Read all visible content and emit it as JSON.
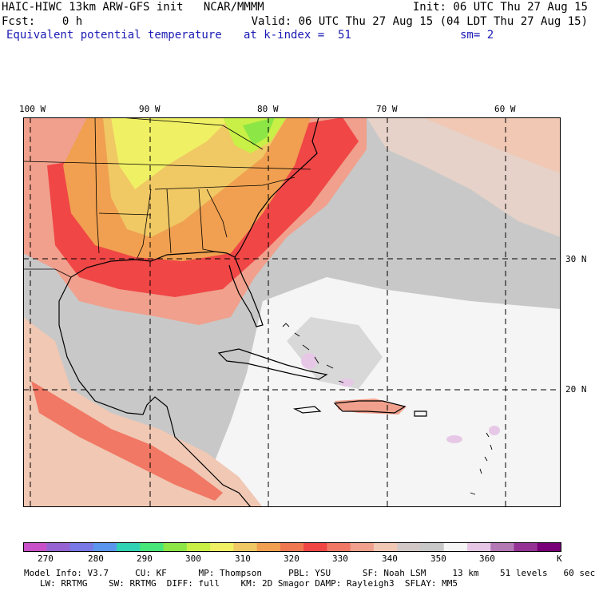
{
  "header": {
    "left_line1": "HAIC-HIWC 13km ARW-GFS init   NCAR/MMMM",
    "left_line2": "Fcst:    0 h",
    "field_name": "Equivalent potential temperature",
    "init": "Init: 06 UTC Thu 27 Aug 15",
    "valid": "Valid: 06 UTC Thu 27 Aug 15 (04 LDT Thu 27 Aug 15)",
    "level": "at k-index =  51",
    "smoothing": "sm= 2"
  },
  "map": {
    "lon_labels": [
      "100 W",
      "90 W",
      "80 W",
      "70 W",
      "60 W"
    ],
    "lat_labels": [
      "30 N",
      "20 N"
    ]
  },
  "colorbar": {
    "tick_labels": [
      "270",
      "280",
      "290",
      "300",
      "310",
      "320",
      "330",
      "340",
      "350",
      "360"
    ],
    "unit": "K",
    "colors": [
      "#c850c8",
      "#9664d2",
      "#7878e6",
      "#5a96ee",
      "#32d2b4",
      "#46e678",
      "#8ce646",
      "#c8f046",
      "#f0f064",
      "#f0c864",
      "#f0a050",
      "#f07850",
      "#f04646",
      "#f07864",
      "#f0a08c",
      "#f0c8b4",
      "#d2c8c8",
      "#c8c8c8",
      "#f5f5f5",
      "#e6c8e6",
      "#b478b4",
      "#963296",
      "#780078"
    ]
  },
  "footer": {
    "line1": "Model Info: V3.7     CU: KF      MP: Thompson     PBL: YSU      SF: Noah LSM     13 km    51 levels   60 sec",
    "line2": "   LW: RRTMG    SW: RRTMG  DIFF: full    KM: 2D Smagor DAMP: Rayleigh3  SFLAY: MM5"
  }
}
